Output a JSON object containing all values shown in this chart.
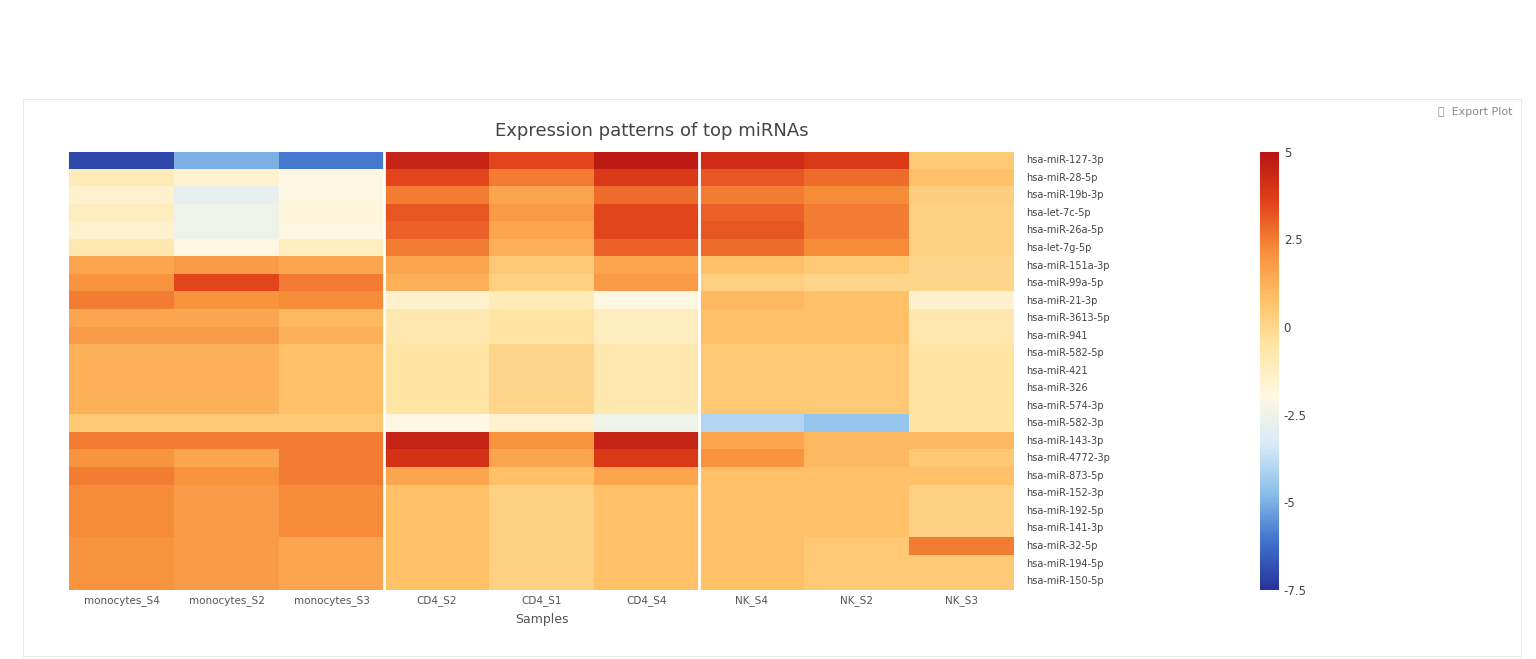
{
  "title": "Expression patterns of top miRNAs",
  "xlabel": "Samples",
  "samples": [
    "monocytes_S4",
    "monocytes_S2",
    "monocytes_S3",
    "CD4_S2",
    "CD4_S1",
    "CD4_S4",
    "NK_S4",
    "NK_S2",
    "NK_S3"
  ],
  "mirnas": [
    "hsa-miR-150-5p",
    "hsa-miR-194-5p",
    "hsa-miR-32-5p",
    "hsa-miR-141-3p",
    "hsa-miR-192-5p",
    "hsa-miR-152-3p",
    "hsa-miR-873-5p",
    "hsa-miR-4772-3p",
    "hsa-miR-143-3p",
    "hsa-miR-582-3p",
    "hsa-miR-574-3p",
    "hsa-miR-326",
    "hsa-miR-421",
    "hsa-miR-582-5p",
    "hsa-miR-941",
    "hsa-miR-3613-5p",
    "hsa-miR-21-3p",
    "hsa-miR-99a-5p",
    "hsa-miR-151a-3p",
    "hsa-let-7g-5p",
    "hsa-miR-26a-5p",
    "hsa-let-7c-5p",
    "hsa-miR-19b-3p",
    "hsa-miR-28-5p",
    "hsa-miR-127-3p"
  ],
  "data": [
    [
      -7.0,
      -5.0,
      -6.0,
      4.5,
      3.5,
      4.8,
      4.2,
      3.8,
      0.5
    ],
    [
      -1.0,
      -1.5,
      -2.0,
      3.5,
      2.5,
      3.8,
      3.2,
      2.8,
      0.8
    ],
    [
      -1.5,
      -2.8,
      -2.0,
      2.5,
      1.5,
      2.8,
      2.5,
      2.2,
      0.3
    ],
    [
      -1.2,
      -2.5,
      -1.8,
      3.2,
      1.8,
      3.5,
      3.0,
      2.5,
      0.2
    ],
    [
      -1.5,
      -2.5,
      -2.0,
      3.0,
      1.5,
      3.5,
      3.2,
      2.5,
      0.2
    ],
    [
      -0.8,
      -2.0,
      -1.2,
      2.5,
      1.2,
      3.0,
      2.8,
      2.2,
      0.2
    ],
    [
      1.5,
      1.8,
      1.5,
      1.5,
      0.5,
      1.5,
      0.8,
      0.5,
      0.0
    ],
    [
      2.0,
      3.5,
      2.5,
      1.2,
      0.2,
      1.8,
      0.2,
      0.0,
      0.0
    ],
    [
      2.5,
      2.0,
      2.2,
      -1.5,
      -1.0,
      -2.0,
      1.0,
      0.8,
      -1.5
    ],
    [
      1.5,
      1.5,
      1.0,
      -0.8,
      -0.5,
      -1.2,
      0.8,
      0.8,
      -0.8
    ],
    [
      1.8,
      1.8,
      1.2,
      -0.8,
      -0.5,
      -1.2,
      0.8,
      0.8,
      -0.8
    ],
    [
      1.2,
      1.2,
      0.8,
      -0.5,
      0.0,
      -0.8,
      0.5,
      0.5,
      -0.5
    ],
    [
      1.2,
      1.2,
      0.8,
      -0.5,
      0.0,
      -0.8,
      0.5,
      0.5,
      -0.5
    ],
    [
      1.2,
      1.2,
      0.8,
      -0.5,
      0.0,
      -0.8,
      0.5,
      0.5,
      -0.5
    ],
    [
      1.2,
      1.2,
      0.8,
      -0.5,
      0.0,
      -0.8,
      0.5,
      0.5,
      -0.5
    ],
    [
      0.5,
      0.5,
      0.5,
      -2.0,
      -1.5,
      -2.5,
      -4.0,
      -4.5,
      -0.5
    ],
    [
      2.5,
      2.5,
      2.5,
      4.5,
      2.0,
      4.5,
      1.5,
      1.0,
      1.0
    ],
    [
      2.0,
      1.5,
      2.5,
      4.0,
      1.5,
      3.8,
      2.0,
      1.0,
      0.5
    ],
    [
      2.5,
      2.0,
      2.5,
      1.5,
      0.8,
      1.5,
      0.8,
      0.8,
      0.8
    ],
    [
      2.2,
      1.8,
      2.2,
      0.8,
      0.2,
      0.8,
      0.8,
      0.8,
      0.2
    ],
    [
      2.2,
      1.8,
      2.2,
      0.8,
      0.2,
      0.8,
      0.8,
      0.8,
      0.2
    ],
    [
      2.2,
      1.8,
      2.2,
      0.8,
      0.2,
      0.8,
      0.8,
      0.8,
      0.2
    ],
    [
      2.0,
      1.8,
      1.5,
      0.8,
      0.2,
      0.8,
      0.8,
      0.5,
      2.5
    ],
    [
      2.0,
      1.8,
      1.5,
      0.8,
      0.2,
      0.8,
      0.8,
      0.5,
      0.5
    ],
    [
      2.0,
      1.8,
      1.5,
      0.8,
      0.2,
      0.8,
      0.8,
      0.5,
      0.5
    ]
  ],
  "vmin": -7.5,
  "vmax": 5.0,
  "colorbar_ticks": [
    5,
    2.5,
    0,
    -2.5,
    -5,
    -7.5
  ],
  "fig_width": 15.36,
  "fig_height": 6.59,
  "dpi": 100,
  "bg_color": "#ffffff",
  "inner_box_color": "#ffffff",
  "title_fontsize": 13,
  "tick_fontsize": 7.5,
  "colorbar_label_fontsize": 8.5,
  "xlabel_fontsize": 9
}
